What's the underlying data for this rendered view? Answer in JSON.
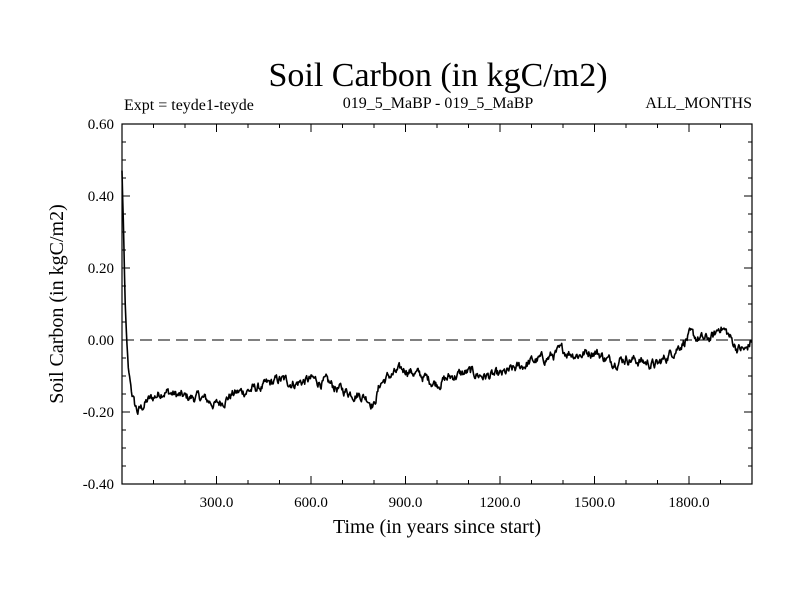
{
  "chart_data": {
    "type": "line",
    "title": "Soil Carbon (in kgC/m2)",
    "subtitle_left": "Expt = teyde1-teyde",
    "subtitle_center": "019_5_MaBP - 019_5_MaBP",
    "subtitle_right": "ALL_MONTHS",
    "xlabel": "Time (in years since start)",
    "ylabel": "Soil Carbon (in kgC/m2)",
    "xlim": [
      0,
      2000
    ],
    "ylim": [
      -0.4,
      0.6
    ],
    "xticks": [
      300,
      600,
      900,
      1200,
      1500,
      1800
    ],
    "xtick_labels": [
      "300.0",
      "600.0",
      "900.0",
      "1200.0",
      "1500.0",
      "1800.0"
    ],
    "yticks": [
      -0.4,
      -0.2,
      0.0,
      0.2,
      0.4,
      0.6
    ],
    "ytick_labels": [
      "-0.40",
      "-0.20",
      "0.00",
      "0.20",
      "0.40",
      "0.60"
    ],
    "reference_line": {
      "y": 0.0,
      "style": "dashed"
    },
    "grid": false,
    "series": [
      {
        "name": "Soil Carbon",
        "x": [
          0,
          5,
          10,
          15,
          20,
          30,
          40,
          50,
          60,
          80,
          100,
          130,
          160,
          200,
          250,
          300,
          350,
          400,
          450,
          500,
          550,
          600,
          650,
          700,
          750,
          780,
          800,
          820,
          850,
          900,
          950,
          1000,
          1050,
          1100,
          1150,
          1200,
          1250,
          1300,
          1350,
          1400,
          1450,
          1500,
          1550,
          1600,
          1650,
          1700,
          1750,
          1800,
          1850,
          1880,
          1900,
          1920,
          1950,
          1980,
          2000
        ],
        "values": [
          0.47,
          0.3,
          0.1,
          0.0,
          -0.08,
          -0.14,
          -0.18,
          -0.2,
          -0.19,
          -0.17,
          -0.16,
          -0.14,
          -0.15,
          -0.16,
          -0.16,
          -0.18,
          -0.15,
          -0.14,
          -0.13,
          -0.11,
          -0.12,
          -0.11,
          -0.12,
          -0.14,
          -0.15,
          -0.16,
          -0.18,
          -0.12,
          -0.1,
          -0.08,
          -0.1,
          -0.12,
          -0.1,
          -0.09,
          -0.1,
          -0.1,
          -0.08,
          -0.06,
          -0.05,
          -0.03,
          -0.04,
          -0.03,
          -0.06,
          -0.05,
          -0.06,
          -0.07,
          -0.03,
          0.01,
          0.0,
          0.01,
          0.04,
          0.02,
          -0.02,
          -0.03,
          0.0
        ]
      }
    ]
  }
}
